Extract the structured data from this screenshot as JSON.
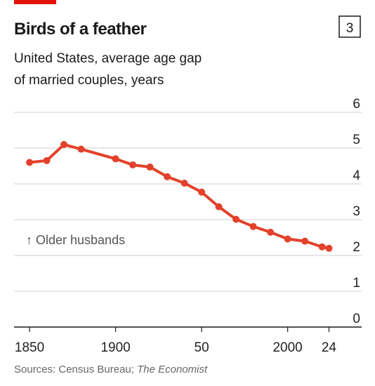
{
  "chart_data": {
    "type": "line",
    "title": "Birds of a feather",
    "badge": "3",
    "subtitle": [
      "United States, average age gap",
      "of married couples, years"
    ],
    "annotation": "↑ Older husbands",
    "source": [
      "Sources: Census Bureau; ",
      "The Economist"
    ],
    "x": [
      1850,
      1860,
      1870,
      1880,
      1900,
      1910,
      1920,
      1930,
      1940,
      1950,
      1960,
      1970,
      1980,
      1990,
      2000,
      2010,
      2020,
      2024
    ],
    "series": [
      {
        "name": "Average age gap",
        "color": "#e3412b",
        "values": [
          4.6,
          4.65,
          5.1,
          4.97,
          4.7,
          4.53,
          4.47,
          4.2,
          4.02,
          3.77,
          3.36,
          3.01,
          2.81,
          2.65,
          2.46,
          2.4,
          2.24,
          2.2
        ]
      }
    ],
    "xlim": [
      1841,
      2043
    ],
    "xticks": [
      1850,
      1900,
      {
        "value": 1950,
        "label": "50"
      },
      2000,
      {
        "value": 2024,
        "label": "24"
      }
    ],
    "ylim": [
      0,
      6
    ],
    "yticks": [
      0,
      1,
      2,
      3,
      4,
      5,
      6
    ],
    "grid": true
  }
}
